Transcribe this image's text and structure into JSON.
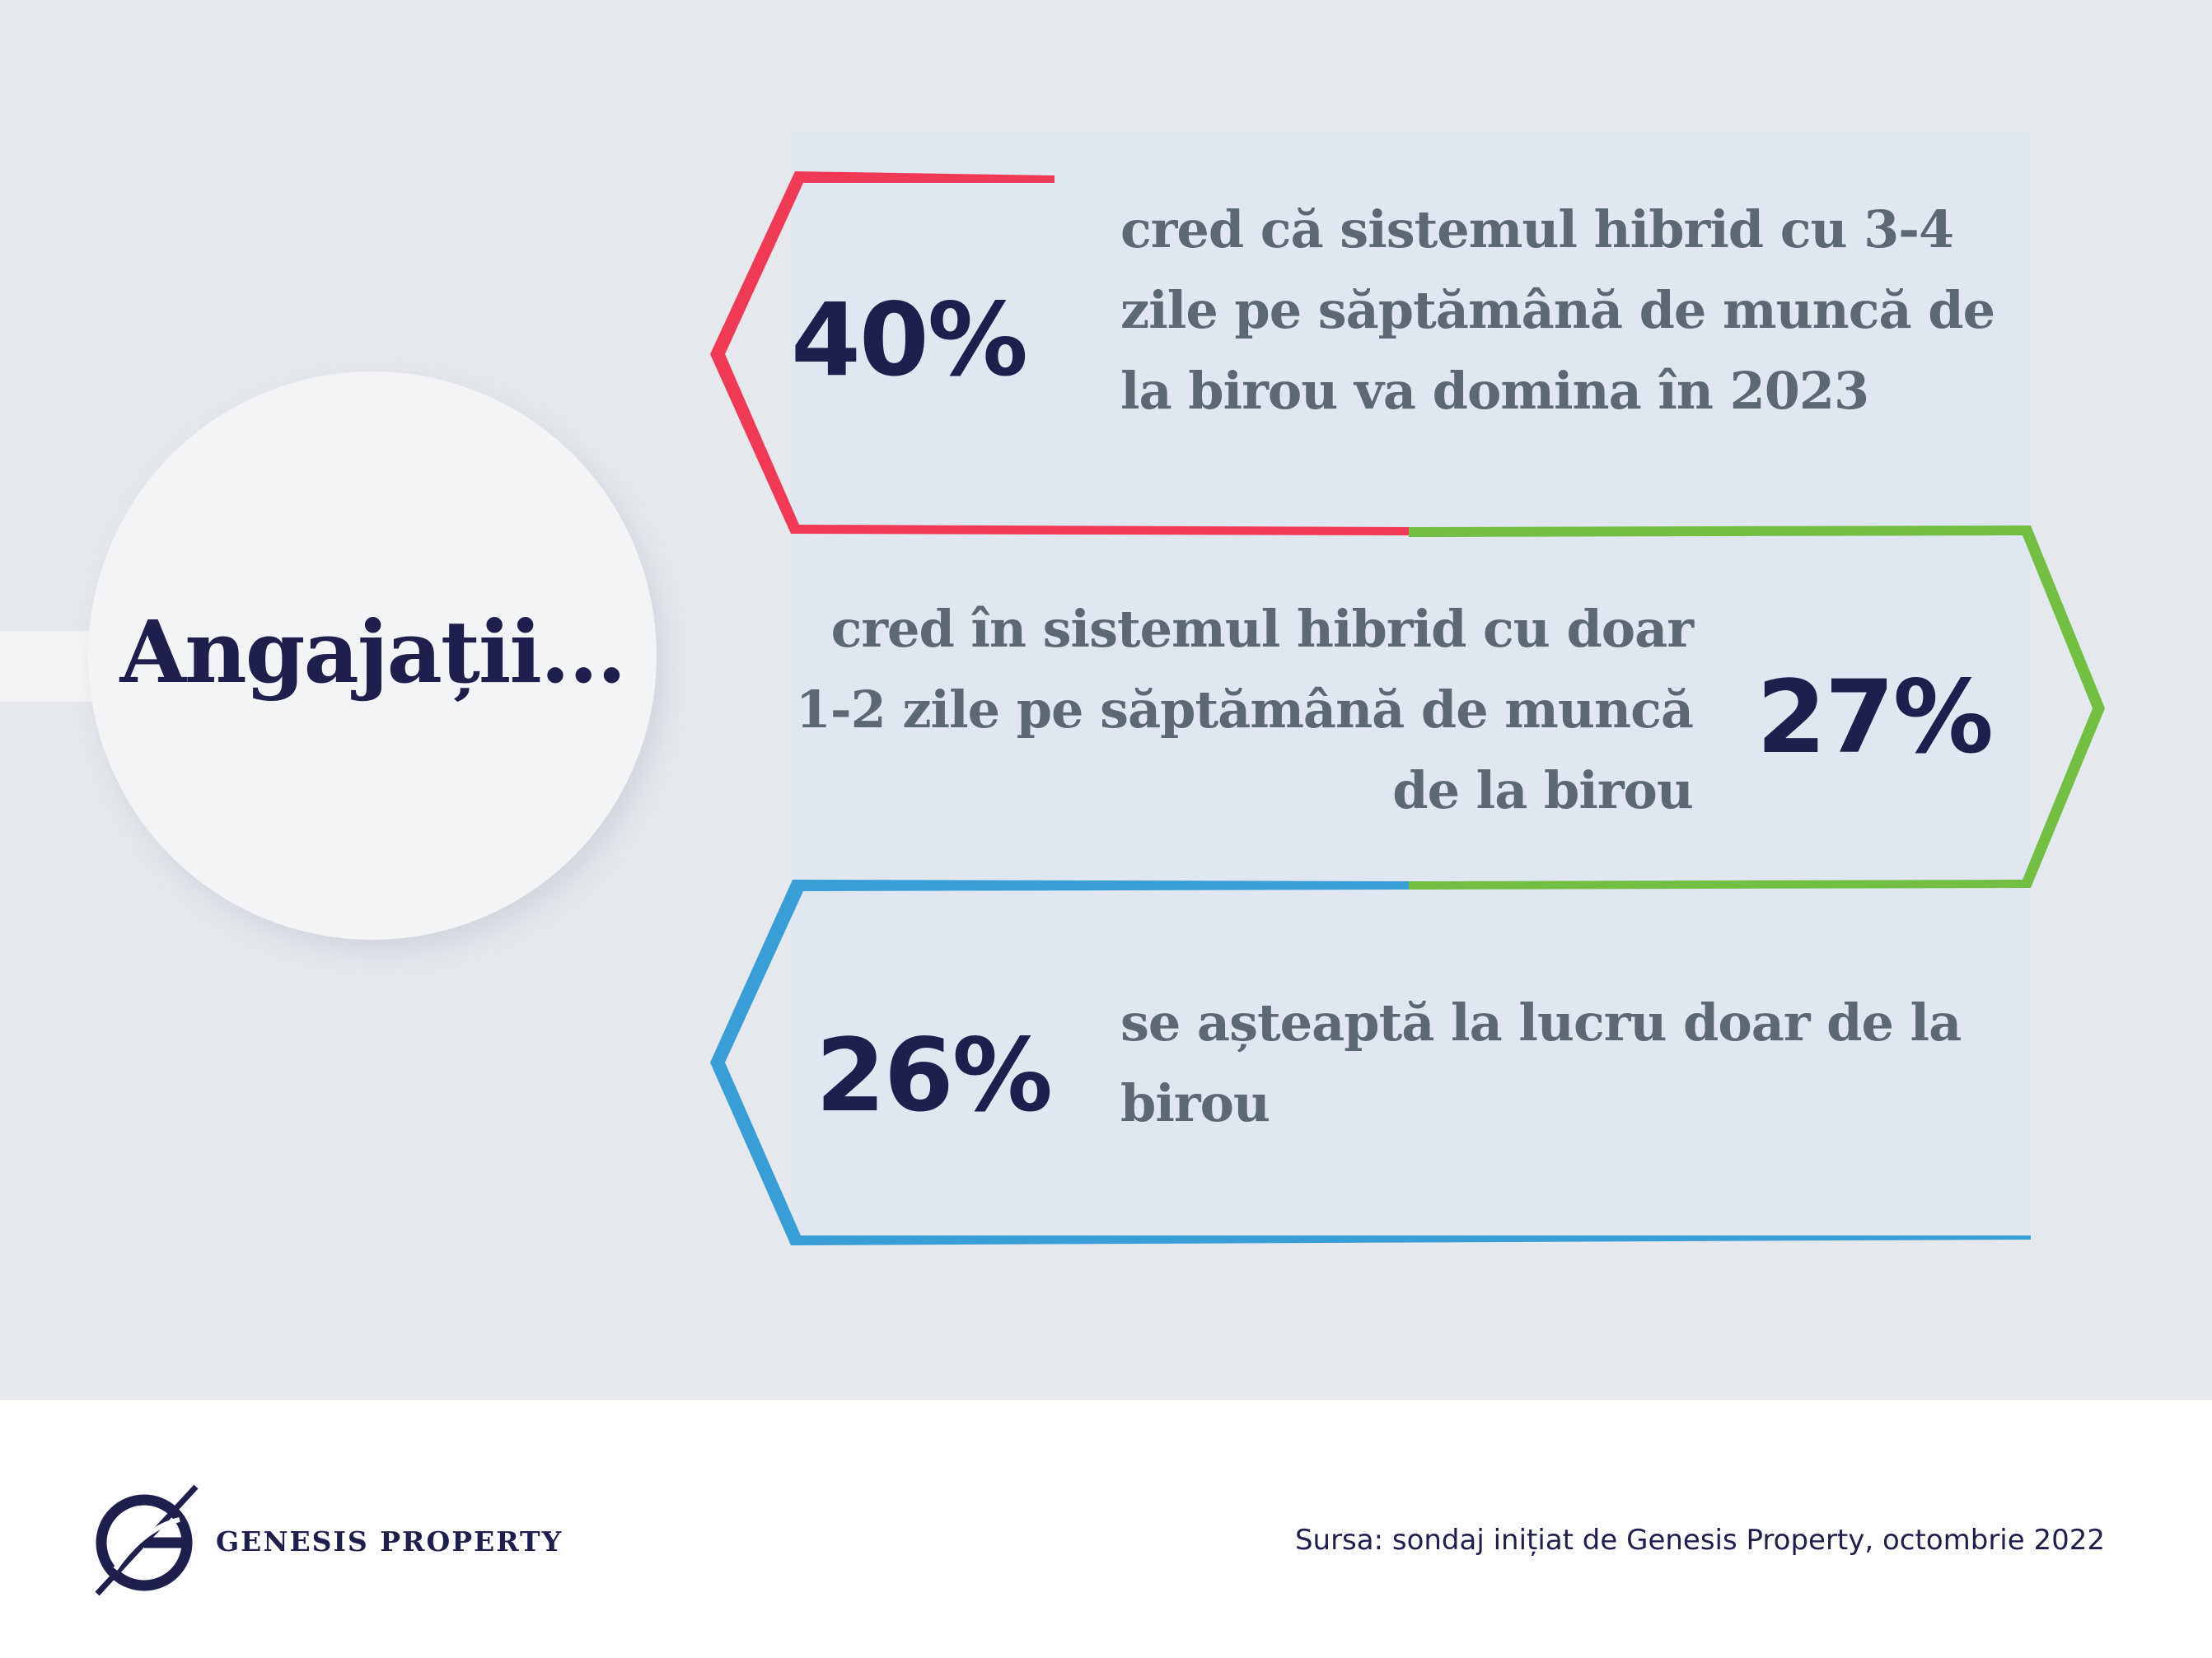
{
  "heading": "Angajații...",
  "items": [
    {
      "percent": "40%",
      "text": "cred că sistemul hibrid cu 3-4 zile pe săptămână de muncă de la birou va domina în 2023",
      "color": "#f03a55"
    },
    {
      "percent": "27%",
      "text": "cred în sistemul hibrid cu doar 1-2 zile pe săptămână de muncă de la birou",
      "color": "#72bf44"
    },
    {
      "percent": "26%",
      "text": "se așteaptă la lucru doar de la birou",
      "color": "#3a9ed6"
    }
  ],
  "colors": {
    "background": "#e5e8ed",
    "box_fill": "#e0e7f1",
    "navy": "#1f1f4e",
    "text_gray": "#5c6873",
    "circle": "#f3f4f5"
  },
  "footer": {
    "brand": "GENESIS PROPERTY",
    "logo_icon": "genesis-g-logo-icon",
    "source": "Sursa: sondaj inițiat de Genesis Property, octombrie 2022"
  }
}
